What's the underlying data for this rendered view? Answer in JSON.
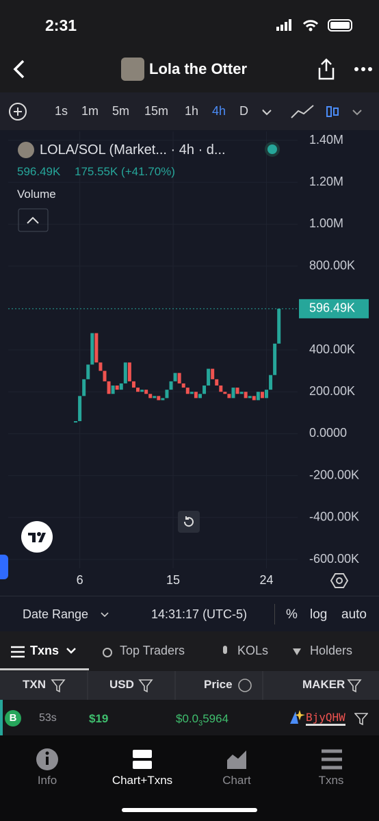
{
  "status": {
    "time": "2:31"
  },
  "header": {
    "title": "Lola the Otter"
  },
  "toolbar": {
    "timeframes": [
      "1s",
      "1m",
      "5m",
      "15m",
      "1h",
      "4h",
      "D"
    ],
    "active": "4h"
  },
  "legend": {
    "pair": "LOLA/SOL (Market... · 4h · d...",
    "price": "596.49K",
    "change": "175.55K (+41.70%)",
    "volume": "Volume"
  },
  "chart_data": {
    "type": "candlestick",
    "x": [
      5.6,
      6.0,
      6.4,
      6.8,
      7.2,
      7.6,
      8.0,
      8.4,
      8.8,
      9.2,
      9.6,
      10.0,
      10.4,
      10.8,
      11.2,
      11.6,
      12.0,
      12.4,
      12.8,
      13.2,
      13.6,
      14.0,
      14.4,
      14.8,
      15.2,
      15.6,
      16.0,
      16.4,
      16.8,
      17.2,
      17.6,
      18.0,
      18.4,
      18.8,
      19.2,
      19.6,
      20.0,
      20.4,
      20.8,
      21.2,
      21.6,
      22.0,
      22.4,
      22.8,
      23.2,
      23.6,
      24.0,
      24.4,
      24.8,
      25.2
    ],
    "values": [
      60000,
      180000,
      260000,
      330000,
      480000,
      340000,
      300000,
      250000,
      190000,
      230000,
      210000,
      240000,
      340000,
      250000,
      220000,
      200000,
      210000,
      190000,
      170000,
      180000,
      160000,
      170000,
      210000,
      250000,
      290000,
      240000,
      220000,
      190000,
      200000,
      170000,
      190000,
      230000,
      310000,
      260000,
      230000,
      200000,
      190000,
      170000,
      220000,
      190000,
      200000,
      170000,
      180000,
      160000,
      200000,
      170000,
      210000,
      280000,
      430000,
      596490
    ],
    "up_color": "#26a69a",
    "down_color": "#ef5350",
    "xlim": [
      -0.9,
      27
    ],
    "xticks": [
      6,
      15,
      24
    ],
    "ylim": [
      -600000,
      1400000
    ],
    "yticks": [
      {
        "value": 1400000,
        "label": "1.40M"
      },
      {
        "value": 1200000,
        "label": "1.20M"
      },
      {
        "value": 1000000,
        "label": "1.00M"
      },
      {
        "value": 800000,
        "label": "800.00K"
      },
      {
        "value": 400000,
        "label": "400.00K"
      },
      {
        "value": 200000,
        "label": "200.00K"
      },
      {
        "value": 0,
        "label": "0.0000"
      },
      {
        "value": -200000,
        "label": "-200.00K"
      },
      {
        "value": -400000,
        "label": "-400.00K"
      },
      {
        "value": -600000,
        "label": "-600.00K"
      }
    ],
    "last_price": {
      "value": 596490,
      "label": "596.49K"
    },
    "grid": true
  },
  "chart_footer": {
    "date_range": "Date Range",
    "clock": "14:31:17 (UTC-5)",
    "percent": "%",
    "log": "log",
    "auto": "auto"
  },
  "tabs": [
    "Txns",
    "Top Traders",
    "KOLs",
    "Holders"
  ],
  "table": {
    "headers": [
      "TXN",
      "USD",
      "Price",
      "MAKER"
    ],
    "rows": [
      {
        "side": "B",
        "age": "53s",
        "usd": "$19",
        "price": "$0.0",
        "price_zeros": "3",
        "price_digits": "5964",
        "maker": "BjyQHW"
      }
    ]
  },
  "nav": [
    "Info",
    "Chart+Txns",
    "Chart",
    "Txns"
  ]
}
